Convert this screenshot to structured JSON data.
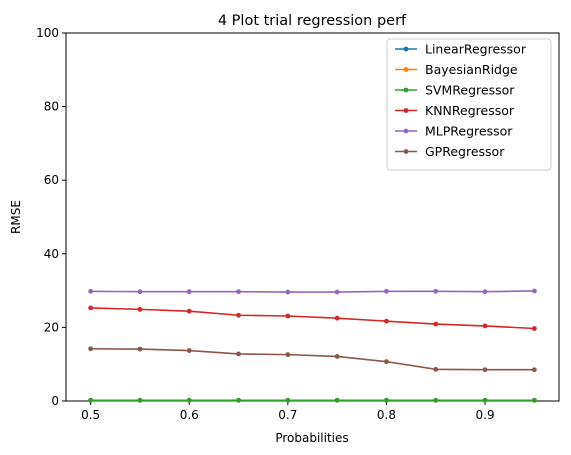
{
  "chart_data": {
    "type": "line",
    "title": "4 Plot trial regression perf",
    "xlabel": "Probabilities",
    "ylabel": "RMSE",
    "xlim": [
      0.475,
      0.975
    ],
    "ylim": [
      0,
      100
    ],
    "xticks": [
      0.5,
      0.6,
      0.7,
      0.8,
      0.9
    ],
    "xtick_labels": [
      "0.5",
      "0.6",
      "0.7",
      "0.8",
      "0.9"
    ],
    "yticks": [
      0,
      20,
      40,
      60,
      80,
      100
    ],
    "ytick_labels": [
      "0",
      "20",
      "40",
      "60",
      "80",
      "100"
    ],
    "grid": false,
    "legend_position": "top-right",
    "x": [
      0.5,
      0.55,
      0.6,
      0.65,
      0.7,
      0.75,
      0.8,
      0.85,
      0.9,
      0.95
    ],
    "series": [
      {
        "name": "LinearRegressor",
        "color": "#1f77b4",
        "values": [
          0.2,
          0.2,
          0.2,
          0.2,
          0.2,
          0.2,
          0.2,
          0.2,
          0.2,
          0.2
        ]
      },
      {
        "name": "BayesianRidge",
        "color": "#ff7f0e",
        "values": [
          0.2,
          0.2,
          0.2,
          0.2,
          0.2,
          0.2,
          0.2,
          0.2,
          0.2,
          0.2
        ]
      },
      {
        "name": "SVMRegressor",
        "color": "#2ca02c",
        "values": [
          0.2,
          0.2,
          0.2,
          0.2,
          0.2,
          0.2,
          0.2,
          0.2,
          0.2,
          0.2
        ]
      },
      {
        "name": "KNNRegressor",
        "color": "#d62728",
        "values": [
          25.3,
          24.9,
          24.4,
          23.3,
          23.1,
          22.5,
          21.7,
          20.9,
          20.4,
          19.7
        ]
      },
      {
        "name": "MLPRegressor",
        "color": "#9467bd",
        "values": [
          29.8,
          29.7,
          29.7,
          29.7,
          29.6,
          29.6,
          29.8,
          29.8,
          29.7,
          29.9
        ]
      },
      {
        "name": "GPRegressor",
        "color": "#8c564b",
        "values": [
          14.2,
          14.1,
          13.7,
          12.8,
          12.6,
          12.1,
          10.7,
          8.6,
          8.5,
          8.5
        ]
      }
    ]
  }
}
